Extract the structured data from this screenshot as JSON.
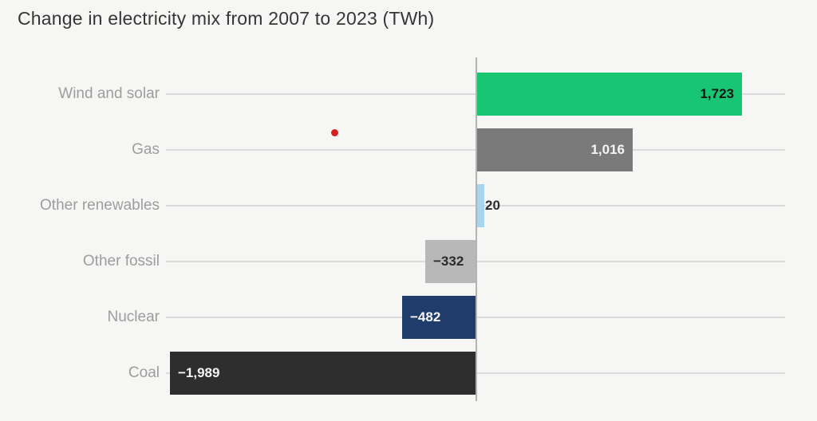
{
  "title": "Change in electricity mix from 2007 to 2023 (TWh)",
  "annotation": {
    "red_dot_color": "#d7201f"
  },
  "chart_data": {
    "type": "bar",
    "orientation": "horizontal",
    "title": "Change in electricity mix from 2007 to 2023 (TWh)",
    "unit": "TWh",
    "categories": [
      "Wind and solar",
      "Gas",
      "Other renewables",
      "Other fossil",
      "Nuclear",
      "Coal"
    ],
    "values": [
      1723,
      1016,
      20,
      -332,
      -482,
      -1989
    ],
    "value_labels": [
      "1,723",
      "1,016",
      "20",
      "−332",
      "−482",
      "−1,989"
    ],
    "bar_colors": [
      "#18c572",
      "#7a7a7a",
      "#a8d4ec",
      "#b8b8b8",
      "#1f3c6a",
      "#2e2e2e"
    ],
    "value_label_colors": [
      "#151515",
      "#f5f5f5",
      "#2b2b2b",
      "#2b2b2b",
      "#f5f5f5",
      "#f5f5f5"
    ],
    "value_label_placement": [
      "inside-end",
      "inside-end",
      "outside-end",
      "inside-end",
      "inside-end",
      "inside-end"
    ],
    "xlim": [
      -2012,
      2002
    ],
    "xlabel": "",
    "ylabel": "",
    "grid": true,
    "legend": false,
    "background_color": "#f6f6f5",
    "gridline_color": "#dbdbdb",
    "axis_line_color": "#b3b3b3",
    "category_label_color": "#9d9d9d"
  }
}
